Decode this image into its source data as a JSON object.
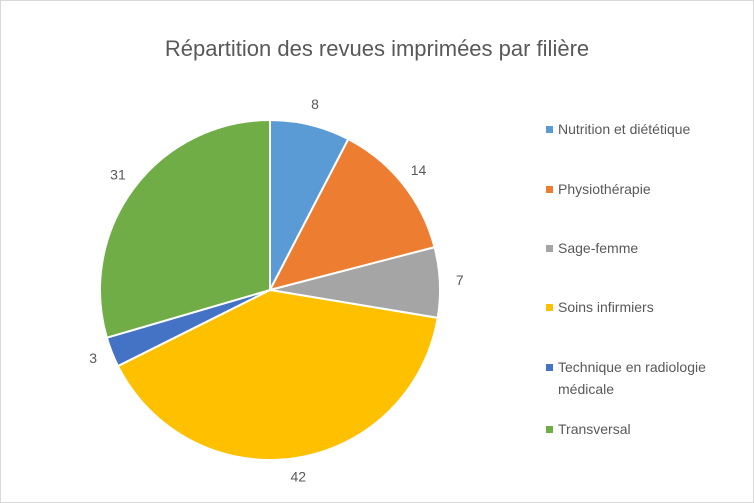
{
  "chart_data": {
    "type": "pie",
    "title": "Répartition des revues imprimées par filière",
    "categories": [
      "Nutrition et diététique",
      "Physiothérapie",
      "Sage-femme",
      "Soins infirmiers",
      "Technique en radiologie médicale",
      "Transversal"
    ],
    "values": [
      8,
      14,
      7,
      42,
      3,
      31
    ],
    "colors": [
      "#5b9bd5",
      "#ed7d31",
      "#a5a5a5",
      "#ffc000",
      "#4472c4",
      "#70ad47"
    ],
    "legend": "right"
  }
}
